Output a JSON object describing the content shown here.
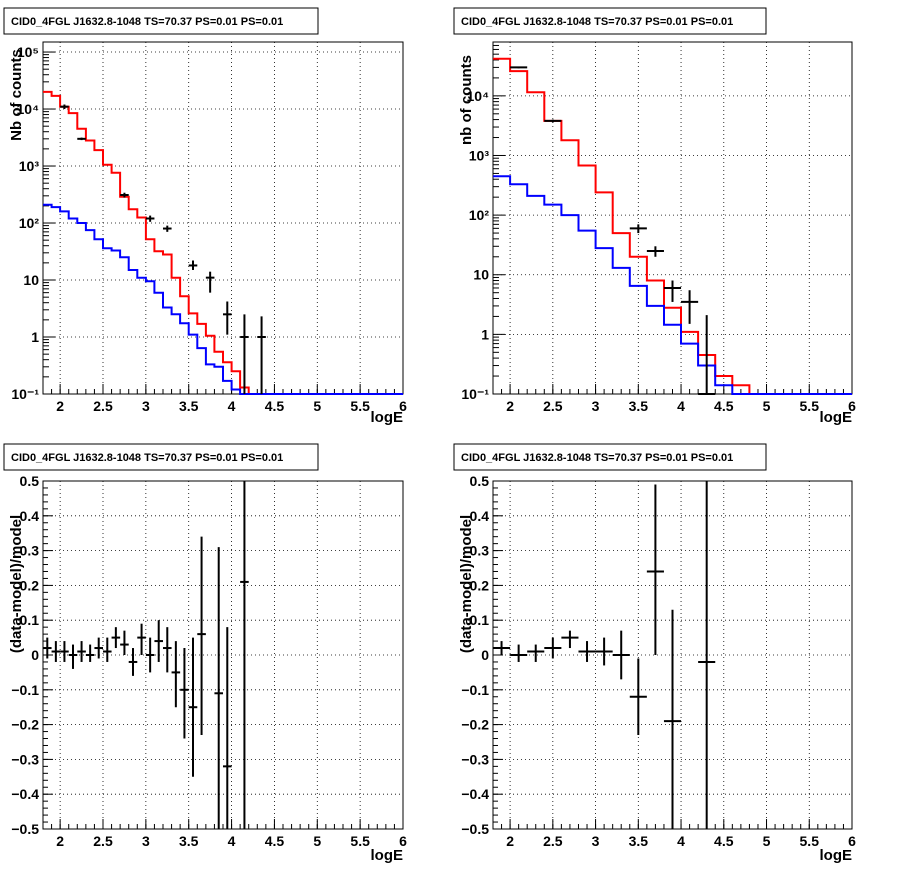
{
  "colors": {
    "data": "#000000",
    "red_model": "#ff0000",
    "blue_model": "#0000ff",
    "grid": "#000000",
    "axis": "#000000"
  },
  "chart_data": [
    {
      "type": "line",
      "title": "CID0_4FGL J1632.8-1048 TS=70.37 PS=0.01 PS=0.01",
      "xlabel": "logE",
      "ylabel": "Nb of counts",
      "xlim": [
        1.8,
        6
      ],
      "ylim": [
        0.1,
        150000
      ],
      "ylog": true,
      "grid": true,
      "x_ticks": [
        "2",
        "2.5",
        "3",
        "3.5",
        "4",
        "4.5",
        "5",
        "5.5",
        "6"
      ],
      "y_ticks": [
        "10⁻¹",
        "1",
        "10",
        "10²",
        "10³",
        "10⁴",
        "10⁵"
      ],
      "steps": [
        {
          "name": "red model",
          "color": "#ff0000",
          "edges": [
            1.8,
            1.9,
            2.0,
            2.1,
            2.2,
            2.3,
            2.4,
            2.5,
            2.6,
            2.7,
            2.8,
            2.9,
            3.0,
            3.1,
            3.2,
            3.3,
            3.4,
            3.5,
            3.6,
            3.7,
            3.8,
            3.9,
            4.0,
            4.1,
            4.2,
            4.3,
            4.4,
            4.5,
            4.6,
            4.7,
            4.8,
            4.9,
            5.0,
            5.1,
            5.2,
            5.3,
            5.4,
            5.5,
            5.6,
            5.7,
            5.8,
            5.9,
            6.0
          ],
          "values": [
            20000,
            17000,
            11000,
            8500,
            4500,
            2800,
            1900,
            1050,
            760,
            290,
            175,
            125,
            52,
            32,
            28,
            11,
            5.2,
            2.6,
            1.7,
            1.05,
            0.55,
            0.36,
            0.25,
            0.13,
            0.1,
            0.1,
            0.1,
            0.1,
            0.1,
            0.1,
            0.1,
            0.1,
            0.1,
            0.1,
            0.1,
            0.1,
            0.1,
            0.1,
            0.1,
            0.1,
            0.1,
            0.1
          ]
        },
        {
          "name": "blue model",
          "color": "#0000ff",
          "edges": [
            1.8,
            1.9,
            2.0,
            2.1,
            2.2,
            2.3,
            2.4,
            2.5,
            2.6,
            2.7,
            2.8,
            2.9,
            3.0,
            3.1,
            3.2,
            3.3,
            3.4,
            3.5,
            3.6,
            3.7,
            3.8,
            3.9,
            4.0,
            4.1,
            4.2,
            4.3,
            4.4,
            4.5,
            4.6,
            4.7,
            4.8,
            4.9,
            5.0,
            5.1,
            5.2,
            5.3,
            5.4,
            5.5,
            5.6,
            5.7,
            5.8,
            5.9,
            6.0
          ],
          "values": [
            210,
            190,
            160,
            120,
            100,
            75,
            52,
            36,
            33,
            25,
            15,
            11,
            9.5,
            6.0,
            3.3,
            2.5,
            1.75,
            1.1,
            0.64,
            0.33,
            0.3,
            0.17,
            0.12,
            0.1,
            0.1,
            0.1,
            0.1,
            0.1,
            0.1,
            0.1,
            0.1,
            0.1,
            0.1,
            0.1,
            0.1,
            0.1,
            0.1,
            0.1,
            0.1,
            0.1,
            0.1,
            0.1
          ]
        }
      ],
      "points": [
        {
          "x": 2.05,
          "y": 11000,
          "yerr_lo": 10000,
          "yerr_hi": 12000
        },
        {
          "x": 2.25,
          "y": 3000,
          "yerr_lo": 2850,
          "yerr_hi": 3150
        },
        {
          "x": 2.75,
          "y": 310,
          "yerr_lo": 280,
          "yerr_hi": 340
        },
        {
          "x": 3.05,
          "y": 120,
          "yerr_lo": 105,
          "yerr_hi": 135
        },
        {
          "x": 3.25,
          "y": 80,
          "yerr_lo": 70,
          "yerr_hi": 90
        },
        {
          "x": 3.55,
          "y": 18,
          "yerr_lo": 15,
          "yerr_hi": 22
        },
        {
          "x": 3.75,
          "y": 11,
          "yerr_lo": 6,
          "yerr_hi": 14
        },
        {
          "x": 3.95,
          "y": 2.5,
          "yerr_lo": 1.1,
          "yerr_hi": 4.2
        },
        {
          "x": 4.15,
          "y": 1.0,
          "yerr_lo": 0.1,
          "yerr_hi": 2.5
        },
        {
          "x": 4.35,
          "y": 1.0,
          "yerr_lo": 0.1,
          "yerr_hi": 2.3
        }
      ]
    },
    {
      "type": "line",
      "title": "CID0_4FGL J1632.8-1048 TS=70.37 PS=0.01 PS=0.01",
      "xlabel": "logE",
      "ylabel": "nb of counts",
      "xlim": [
        1.8,
        6
      ],
      "ylim": [
        0.1,
        80000
      ],
      "ylog": true,
      "grid": true,
      "x_ticks": [
        "2",
        "2.5",
        "3",
        "3.5",
        "4",
        "4.5",
        "5",
        "5.5",
        "6"
      ],
      "y_ticks": [
        "10⁻¹",
        "1",
        "10",
        "10²",
        "10³",
        "10⁴"
      ],
      "steps": [
        {
          "name": "red model",
          "color": "#ff0000",
          "edges": [
            1.8,
            2.0,
            2.2,
            2.4,
            2.6,
            2.8,
            3.0,
            3.2,
            3.4,
            3.6,
            3.8,
            4.0,
            4.2,
            4.4,
            4.6,
            4.8,
            5.0,
            5.2,
            5.4,
            5.6,
            5.8,
            6.0
          ],
          "values": [
            42000,
            26000,
            11500,
            3800,
            1800,
            680,
            240,
            50,
            20,
            8,
            2.8,
            1.1,
            0.45,
            0.2,
            0.14,
            0.1,
            0.1,
            0.1,
            0.1,
            0.1,
            0.1
          ]
        },
        {
          "name": "blue model",
          "color": "#0000ff",
          "edges": [
            1.8,
            2.0,
            2.2,
            2.4,
            2.6,
            2.8,
            3.0,
            3.2,
            3.4,
            3.6,
            3.8,
            4.0,
            4.2,
            4.4,
            4.6,
            4.8,
            5.0,
            5.2,
            5.4,
            5.6,
            5.8,
            6.0
          ],
          "values": [
            450,
            330,
            210,
            150,
            100,
            55,
            28,
            13,
            6.5,
            3.0,
            1.45,
            0.7,
            0.3,
            0.14,
            0.1,
            0.1,
            0.1,
            0.1,
            0.1,
            0.1,
            0.1
          ]
        }
      ],
      "points": [
        {
          "x": 2.1,
          "y": 30000,
          "yerr_lo": 29000,
          "yerr_hi": 31000
        },
        {
          "x": 2.5,
          "y": 3800,
          "yerr_lo": 3600,
          "yerr_hi": 4000
        },
        {
          "x": 3.5,
          "y": 60,
          "yerr_lo": 50,
          "yerr_hi": 70
        },
        {
          "x": 3.7,
          "y": 25,
          "yerr_lo": 20,
          "yerr_hi": 30
        },
        {
          "x": 3.9,
          "y": 6,
          "yerr_lo": 3.5,
          "yerr_hi": 8
        },
        {
          "x": 4.1,
          "y": 3.5,
          "yerr_lo": 1.5,
          "yerr_hi": 5.5
        },
        {
          "x": 4.3,
          "y": 0.1,
          "yerr_lo": 0.1,
          "yerr_hi": 2.1
        }
      ]
    },
    {
      "type": "scatter",
      "title": "CID0_4FGL J1632.8-1048 TS=70.37 PS=0.01 PS=0.01",
      "xlabel": "logE",
      "ylabel": "(data-model)/model",
      "xlim": [
        1.8,
        6
      ],
      "ylim": [
        -0.5,
        0.5
      ],
      "ylog": false,
      "grid": true,
      "x_ticks": [
        "2",
        "2.5",
        "3",
        "3.5",
        "4",
        "4.5",
        "5",
        "5.5",
        "6"
      ],
      "y_ticks": [
        "−0.5",
        "−0.4",
        "−0.3",
        "−0.2",
        "−0.1",
        "0",
        "0.1",
        "0.2",
        "0.3",
        "0.4",
        "0.5"
      ],
      "points": [
        {
          "x": 1.85,
          "y": 0.02,
          "yerr_lo": -0.01,
          "yerr_hi": 0.05
        },
        {
          "x": 1.95,
          "y": 0.01,
          "yerr_lo": -0.02,
          "yerr_hi": 0.04
        },
        {
          "x": 2.05,
          "y": 0.01,
          "yerr_lo": -0.02,
          "yerr_hi": 0.04
        },
        {
          "x": 2.15,
          "y": 0.0,
          "yerr_lo": -0.04,
          "yerr_hi": 0.03
        },
        {
          "x": 2.25,
          "y": 0.01,
          "yerr_lo": -0.02,
          "yerr_hi": 0.04
        },
        {
          "x": 2.35,
          "y": 0.0,
          "yerr_lo": -0.02,
          "yerr_hi": 0.03
        },
        {
          "x": 2.45,
          "y": 0.02,
          "yerr_lo": -0.01,
          "yerr_hi": 0.05
        },
        {
          "x": 2.55,
          "y": 0.01,
          "yerr_lo": -0.02,
          "yerr_hi": 0.05
        },
        {
          "x": 2.65,
          "y": 0.05,
          "yerr_lo": 0.02,
          "yerr_hi": 0.08
        },
        {
          "x": 2.75,
          "y": 0.03,
          "yerr_lo": 0.0,
          "yerr_hi": 0.07
        },
        {
          "x": 2.85,
          "y": -0.02,
          "yerr_lo": -0.06,
          "yerr_hi": 0.02
        },
        {
          "x": 2.95,
          "y": 0.05,
          "yerr_lo": 0.0,
          "yerr_hi": 0.09
        },
        {
          "x": 3.05,
          "y": 0.0,
          "yerr_lo": -0.05,
          "yerr_hi": 0.05
        },
        {
          "x": 3.15,
          "y": 0.04,
          "yerr_lo": -0.02,
          "yerr_hi": 0.1
        },
        {
          "x": 3.25,
          "y": 0.02,
          "yerr_lo": -0.05,
          "yerr_hi": 0.08
        },
        {
          "x": 3.35,
          "y": -0.05,
          "yerr_lo": -0.15,
          "yerr_hi": 0.04
        },
        {
          "x": 3.45,
          "y": -0.1,
          "yerr_lo": -0.24,
          "yerr_hi": 0.02
        },
        {
          "x": 3.55,
          "y": -0.15,
          "yerr_lo": -0.35,
          "yerr_hi": 0.05
        },
        {
          "x": 3.65,
          "y": 0.06,
          "yerr_lo": -0.23,
          "yerr_hi": 0.34
        },
        {
          "x": 3.85,
          "y": -0.11,
          "yerr_lo": -0.5,
          "yerr_hi": 0.31
        },
        {
          "x": 3.95,
          "y": -0.32,
          "yerr_lo": -0.5,
          "yerr_hi": 0.08
        },
        {
          "x": 4.15,
          "y": 0.21,
          "yerr_lo": -0.5,
          "yerr_hi": 0.5
        }
      ]
    },
    {
      "type": "scatter",
      "title": "CID0_4FGL J1632.8-1048 TS=70.37 PS=0.01 PS=0.01",
      "xlabel": "logE",
      "ylabel": "(data-model)/model",
      "xlim": [
        1.8,
        6
      ],
      "ylim": [
        -0.5,
        0.5
      ],
      "ylog": false,
      "grid": true,
      "x_ticks": [
        "2",
        "2.5",
        "3",
        "3.5",
        "4",
        "4.5",
        "5",
        "5.5",
        "6"
      ],
      "y_ticks": [
        "−0.5",
        "−0.4",
        "−0.3",
        "−0.2",
        "−0.1",
        "0",
        "0.1",
        "0.2",
        "0.3",
        "0.4",
        "0.5"
      ],
      "points": [
        {
          "x": 1.9,
          "y": 0.02,
          "yerr_lo": 0.0,
          "yerr_hi": 0.04
        },
        {
          "x": 2.1,
          "y": 0.0,
          "yerr_lo": -0.02,
          "yerr_hi": 0.03
        },
        {
          "x": 2.3,
          "y": 0.01,
          "yerr_lo": -0.02,
          "yerr_hi": 0.03
        },
        {
          "x": 2.5,
          "y": 0.02,
          "yerr_lo": -0.01,
          "yerr_hi": 0.05
        },
        {
          "x": 2.7,
          "y": 0.05,
          "yerr_lo": 0.02,
          "yerr_hi": 0.07
        },
        {
          "x": 2.9,
          "y": 0.01,
          "yerr_lo": -0.02,
          "yerr_hi": 0.04
        },
        {
          "x": 3.1,
          "y": 0.01,
          "yerr_lo": -0.03,
          "yerr_hi": 0.05
        },
        {
          "x": 3.3,
          "y": 0.0,
          "yerr_lo": -0.07,
          "yerr_hi": 0.07
        },
        {
          "x": 3.5,
          "y": -0.12,
          "yerr_lo": -0.23,
          "yerr_hi": -0.01
        },
        {
          "x": 3.7,
          "y": 0.24,
          "yerr_lo": 0.0,
          "yerr_hi": 0.49
        },
        {
          "x": 3.9,
          "y": -0.19,
          "yerr_lo": -0.5,
          "yerr_hi": 0.13
        },
        {
          "x": 4.3,
          "y": -0.02,
          "yerr_lo": -0.5,
          "yerr_hi": 0.5
        }
      ]
    }
  ]
}
